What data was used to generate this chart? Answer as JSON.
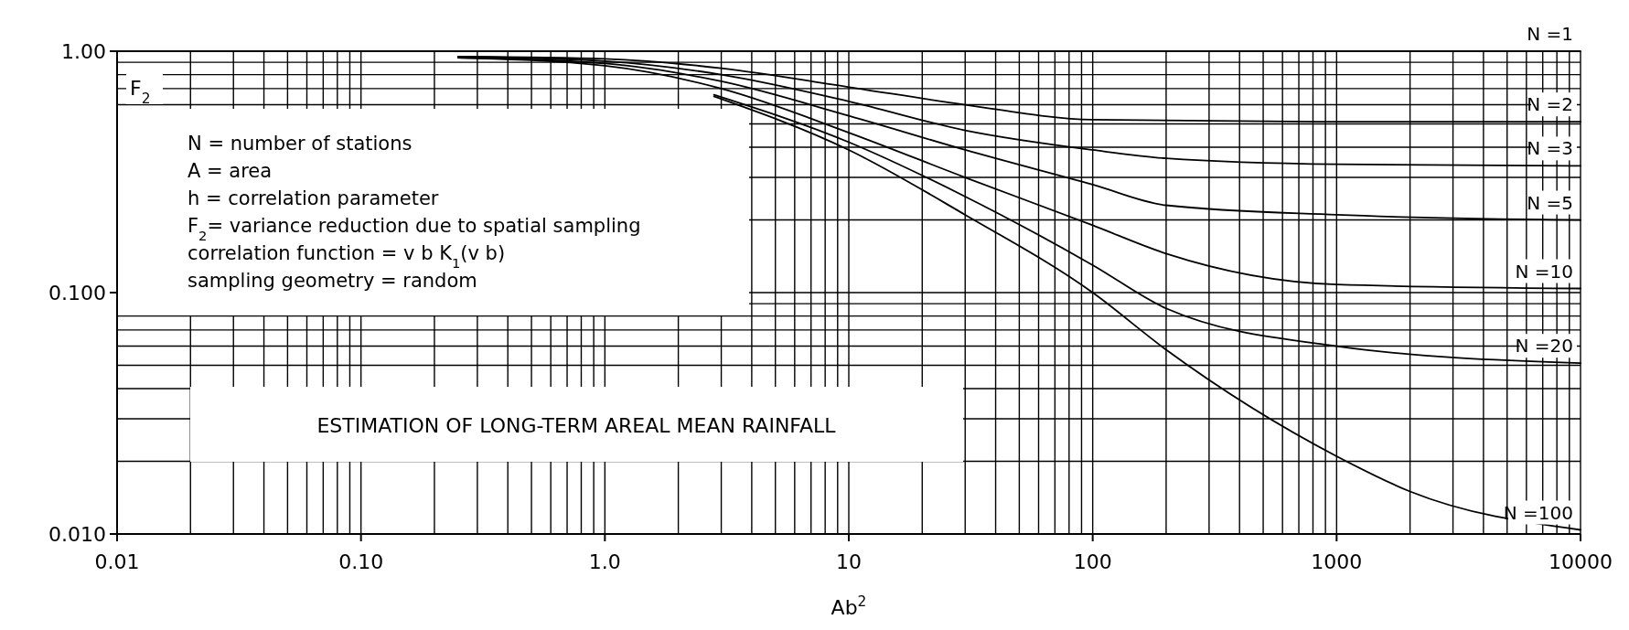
{
  "chart_data": {
    "type": "line",
    "title": "ESTIMATION OF LONG-TERM AREAL MEAN RAINFALL",
    "xlabel": "Ab$^{2}$",
    "ylabel": "F$_{2}$",
    "annotations": [
      "N = number of stations",
      "A = area",
      "h = correlation parameter",
      "F$_{2}$= variance reduction due to spatial sampling",
      "correlation function = v b K$_{1}$(v b)",
      "sampling geometry = random"
    ],
    "log": "xy",
    "grid": true,
    "marker": "none",
    "line_style": "solid",
    "xlim": [
      0.01,
      10000
    ],
    "xticks": [
      {
        "value": 0.01,
        "label": "0.01"
      },
      {
        "value": 0.1,
        "label": "0.10"
      },
      {
        "value": 1,
        "label": "1.0"
      },
      10,
      100,
      1000,
      10000
    ],
    "ylim": [
      0.01,
      1
    ],
    "yticks": [
      {
        "value": 0.01,
        "label": "0.010"
      },
      {
        "value": 0.1,
        "label": "0.100"
      },
      {
        "value": 1,
        "label": "1.00"
      }
    ],
    "series": [
      {
        "name": "N =1",
        "color": "#000000",
        "x": [
          0.01,
          10000
        ],
        "values": [
          1,
          1
        ]
      },
      {
        "name": "N =2",
        "color": "#000000",
        "x": [
          0.25,
          1,
          3,
          10,
          30,
          100,
          1000,
          10000
        ],
        "values": [
          0.95,
          0.93,
          0.85,
          0.71,
          0.6,
          0.52,
          0.51,
          0.51
        ]
      },
      {
        "name": "N =3",
        "color": "#000000",
        "x": [
          0.25,
          1,
          3,
          10,
          30,
          100,
          200,
          1000,
          10000
        ],
        "values": [
          0.95,
          0.91,
          0.8,
          0.62,
          0.47,
          0.39,
          0.36,
          0.34,
          0.335
        ]
      },
      {
        "name": "N =5",
        "color": "#000000",
        "x": [
          0.25,
          1,
          3,
          10,
          30,
          100,
          200,
          1000,
          10000
        ],
        "values": [
          0.94,
          0.89,
          0.75,
          0.54,
          0.39,
          0.28,
          0.23,
          0.21,
          0.2
        ]
      },
      {
        "name": "N =10",
        "color": "#000000",
        "x": [
          0.25,
          1,
          3,
          10,
          30,
          100,
          200,
          1000,
          10000
        ],
        "values": [
          0.94,
          0.87,
          0.7,
          0.46,
          0.3,
          0.19,
          0.145,
          0.108,
          0.104
        ]
      },
      {
        "name": "N =20",
        "color": "#000000",
        "x": [
          2.8,
          10,
          30,
          100,
          200,
          1000,
          10000
        ],
        "values": [
          0.66,
          0.42,
          0.25,
          0.13,
          0.086,
          0.06,
          0.051
        ]
      },
      {
        "name": "N =100",
        "color": "#000000",
        "x": [
          2.8,
          10,
          30,
          100,
          200,
          1000,
          2000,
          10000
        ],
        "values": [
          0.65,
          0.39,
          0.21,
          0.1,
          0.058,
          0.021,
          0.015,
          0.0104
        ]
      }
    ]
  }
}
